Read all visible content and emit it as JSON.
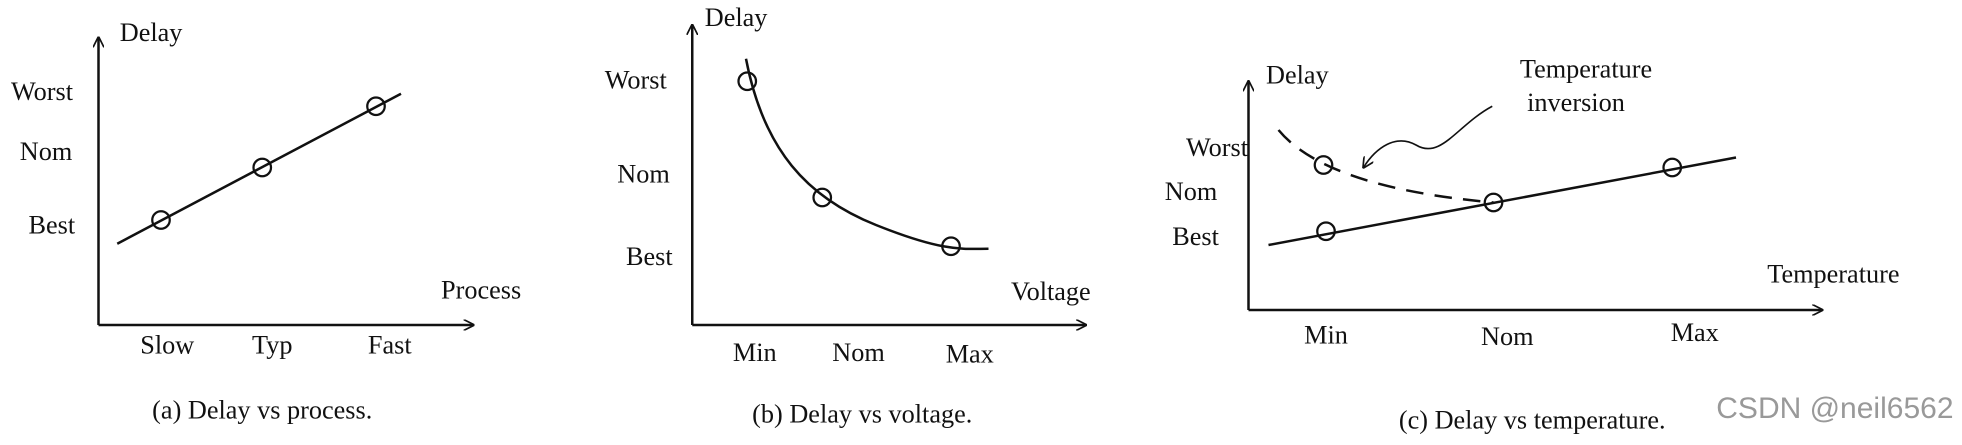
{
  "panels": [
    {
      "y_label": "Delay",
      "y_levels": [
        "Worst",
        "Nom",
        "Best"
      ],
      "x_label": "Process",
      "x_levels": [
        "Slow",
        "Typ",
        "Fast"
      ],
      "caption": "(a) Delay vs process."
    },
    {
      "y_label": "Delay",
      "y_levels": [
        "Worst",
        "Nom",
        "Best"
      ],
      "x_label": "Voltage",
      "x_levels": [
        "Min",
        "Nom",
        "Max"
      ],
      "caption": "(b) Delay vs voltage."
    },
    {
      "y_label": "Delay",
      "y_levels": [
        "Worst",
        "Nom",
        "Best"
      ],
      "x_label": "Temperature",
      "x_levels": [
        "Min",
        "Nom",
        "Max"
      ],
      "caption": "(c) Delay vs temperature.",
      "annotation": [
        "Temperature",
        "inversion"
      ]
    }
  ],
  "watermark": "CSDN @neil6562"
}
